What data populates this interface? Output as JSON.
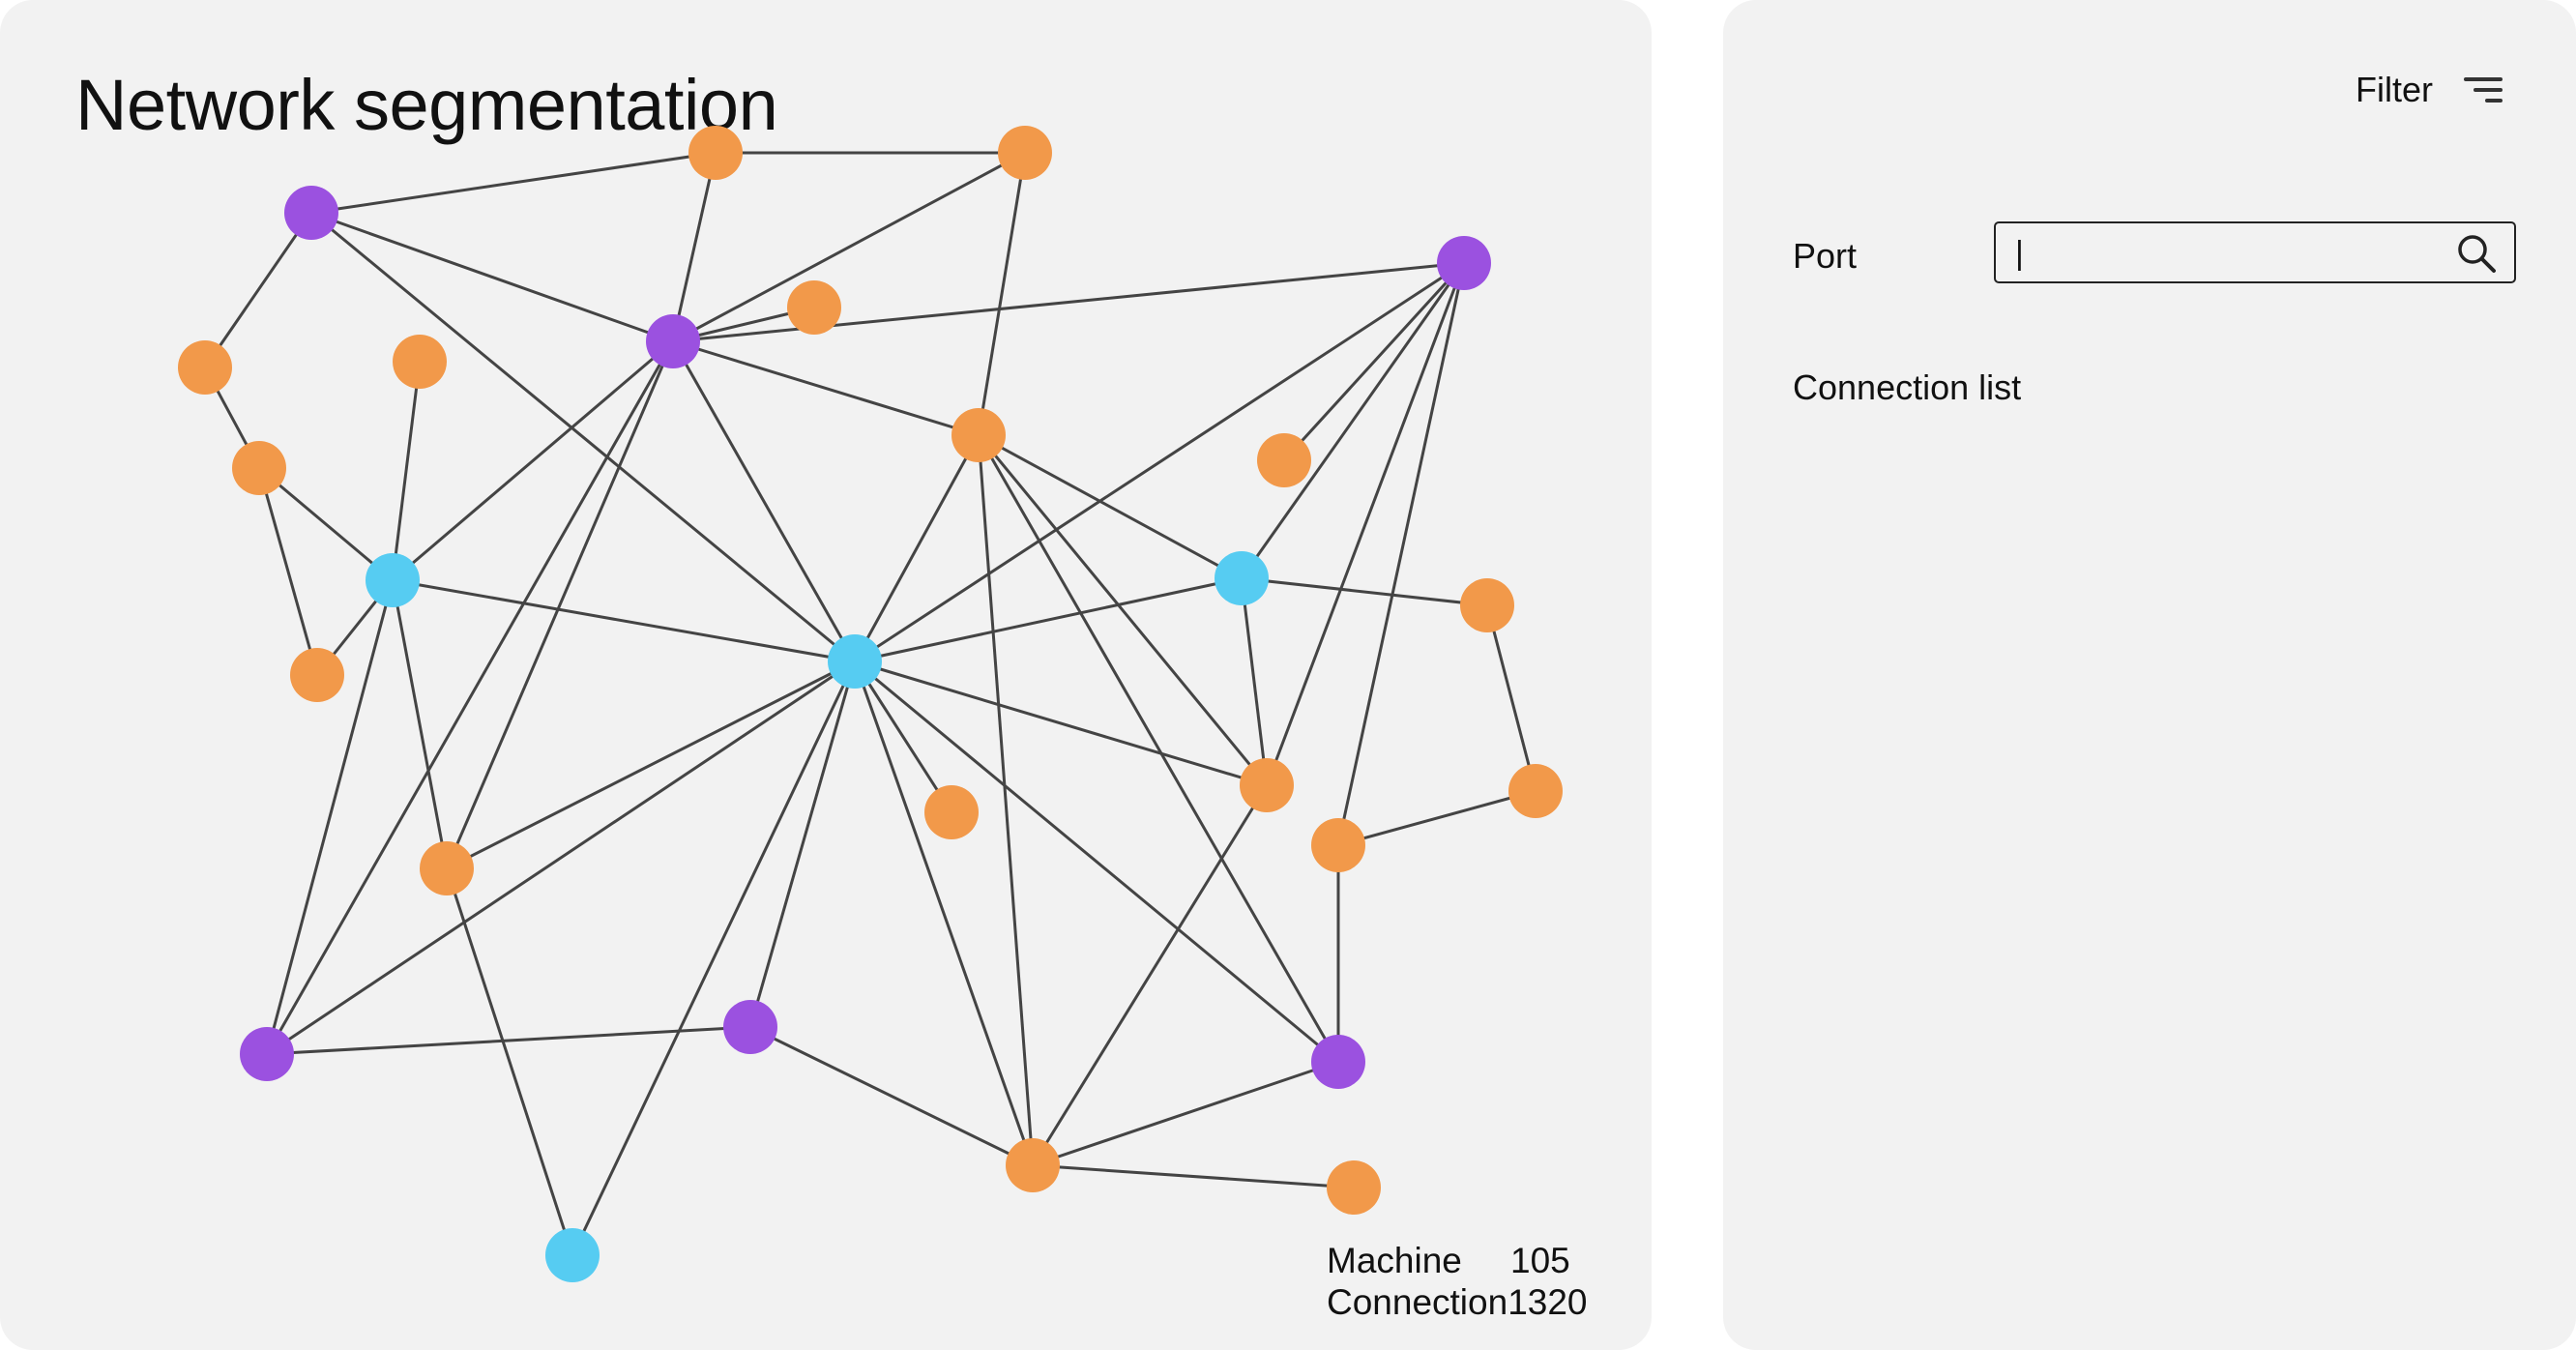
{
  "title": "Network segmentation",
  "graph": {
    "colors": {
      "purple": "#9b51e0",
      "orange": "#f2994a",
      "cyan": "#56ccf2",
      "edge": "#444444"
    },
    "nodes": [
      {
        "id": "p1",
        "type": "purple"
      },
      {
        "id": "p2",
        "type": "purple"
      },
      {
        "id": "p3",
        "type": "purple"
      },
      {
        "id": "p4",
        "type": "purple"
      },
      {
        "id": "p5",
        "type": "purple"
      },
      {
        "id": "p6",
        "type": "purple"
      },
      {
        "id": "c1",
        "type": "cyan"
      },
      {
        "id": "c2",
        "type": "cyan"
      },
      {
        "id": "c3",
        "type": "cyan"
      },
      {
        "id": "c4",
        "type": "cyan"
      },
      {
        "id": "o1",
        "type": "orange"
      },
      {
        "id": "o2",
        "type": "orange"
      },
      {
        "id": "o3",
        "type": "orange"
      },
      {
        "id": "o4",
        "type": "orange"
      },
      {
        "id": "o5",
        "type": "orange"
      },
      {
        "id": "o6",
        "type": "orange"
      },
      {
        "id": "o7",
        "type": "orange"
      },
      {
        "id": "o8",
        "type": "orange"
      },
      {
        "id": "o9",
        "type": "orange"
      },
      {
        "id": "o10",
        "type": "orange"
      },
      {
        "id": "o11",
        "type": "orange"
      },
      {
        "id": "o12",
        "type": "orange"
      },
      {
        "id": "o13",
        "type": "orange"
      },
      {
        "id": "o14",
        "type": "orange"
      },
      {
        "id": "o15",
        "type": "orange"
      },
      {
        "id": "o16",
        "type": "orange"
      },
      {
        "id": "o17",
        "type": "orange"
      },
      {
        "id": "o18",
        "type": "orange"
      }
    ],
    "edges": [
      [
        "p1",
        "o1"
      ],
      [
        "p1",
        "p2"
      ],
      [
        "p1",
        "o5"
      ],
      [
        "p1",
        "c2"
      ],
      [
        "o1",
        "o2"
      ],
      [
        "o1",
        "p2"
      ],
      [
        "o2",
        "p2"
      ],
      [
        "o2",
        "o8"
      ],
      [
        "p2",
        "o3"
      ],
      [
        "p2",
        "o8"
      ],
      [
        "p2",
        "p3"
      ],
      [
        "p2",
        "c1"
      ],
      [
        "p2",
        "c2"
      ],
      [
        "p2",
        "o14"
      ],
      [
        "p2",
        "p4"
      ],
      [
        "o5",
        "o6"
      ],
      [
        "o6",
        "c1"
      ],
      [
        "o6",
        "o7"
      ],
      [
        "c1",
        "o7"
      ],
      [
        "c1",
        "o4"
      ],
      [
        "c1",
        "c2"
      ],
      [
        "c1",
        "o14"
      ],
      [
        "c1",
        "p4"
      ],
      [
        "p3",
        "o9"
      ],
      [
        "p3",
        "c3"
      ],
      [
        "p3",
        "o12"
      ],
      [
        "p3",
        "o16"
      ],
      [
        "p3",
        "c2"
      ],
      [
        "o8",
        "c3"
      ],
      [
        "o8",
        "c2"
      ],
      [
        "o8",
        "o12"
      ],
      [
        "o8",
        "p6"
      ],
      [
        "o8",
        "o17"
      ],
      [
        "c3",
        "c2"
      ],
      [
        "c3",
        "o12"
      ],
      [
        "c3",
        "o10"
      ],
      [
        "o10",
        "o11"
      ],
      [
        "o11",
        "o16"
      ],
      [
        "o16",
        "p6"
      ],
      [
        "c2",
        "o12"
      ],
      [
        "c2",
        "o14"
      ],
      [
        "c2",
        "p4"
      ],
      [
        "c2",
        "p5"
      ],
      [
        "c2",
        "o13"
      ],
      [
        "c2",
        "c4"
      ],
      [
        "c2",
        "o17"
      ],
      [
        "c2",
        "p6"
      ],
      [
        "o14",
        "c4"
      ],
      [
        "p4",
        "p5"
      ],
      [
        "p5",
        "o17"
      ],
      [
        "o17",
        "p6"
      ],
      [
        "o17",
        "o18"
      ],
      [
        "o17",
        "o12"
      ]
    ]
  },
  "stats": {
    "machine_label": "Machine",
    "machine_value": "105",
    "connection_label": "Connection",
    "connection_value": "1320"
  },
  "sidebar": {
    "filter_label": "Filter",
    "filter_icon": "filter-lines-icon",
    "port_label": "Port",
    "port_value": "|",
    "search_icon": "search-icon",
    "connection_list_title": "Connection list"
  }
}
